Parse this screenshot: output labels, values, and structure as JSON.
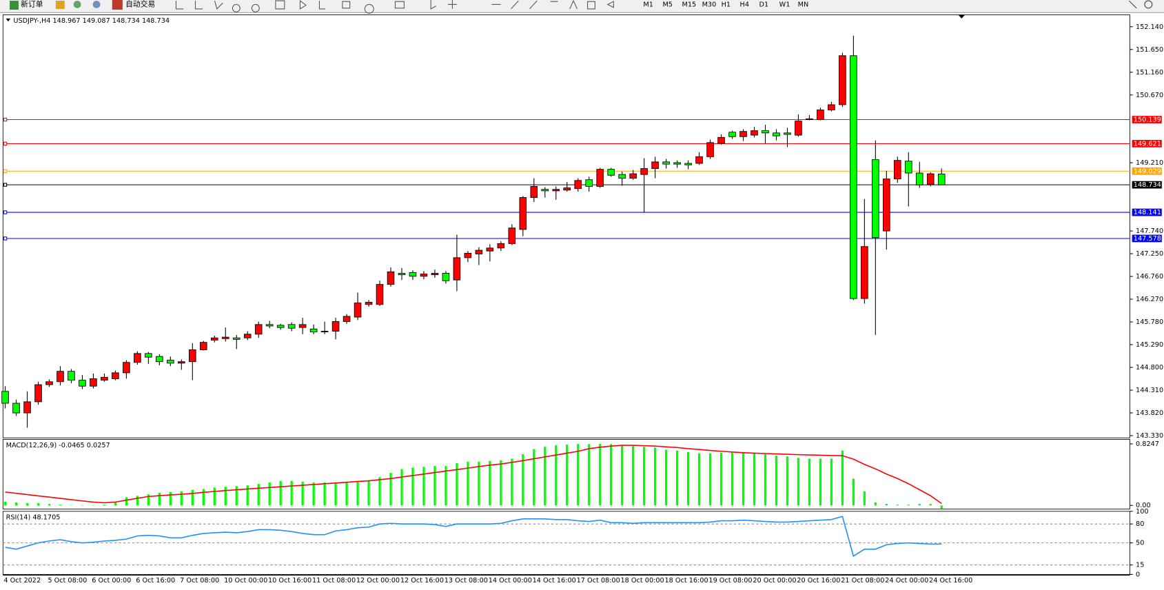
{
  "toolbar": {
    "new_order": "新订单",
    "auto_trading": "自动交易",
    "timeframes": [
      "M1",
      "M5",
      "M15",
      "M30",
      "H1",
      "H4",
      "D1",
      "W1",
      "MN"
    ]
  },
  "chart_data": [
    {
      "type": "candlestick",
      "title": "USDJPY-,H4  148.967 149.087 148.734 148.734",
      "categories": [
        "4 Oct 2022",
        null,
        null,
        null,
        "5 Oct 08:00",
        null,
        null,
        null,
        "6 Oct 00:00",
        null,
        null,
        null,
        "6 Oct 16:00",
        null,
        null,
        null,
        "7 Oct 08:00",
        null,
        null,
        null,
        "10 Oct 00:00",
        null,
        null,
        null,
        "10 Oct 16:00",
        null,
        null,
        null,
        "11 Oct 08:00",
        null,
        null,
        null,
        "12 Oct 00:00",
        null,
        null,
        null,
        "12 Oct 16:00",
        null,
        null,
        null,
        "13 Oct 08:00",
        null,
        null,
        null,
        "14 Oct 00:00",
        null,
        null,
        null,
        "14 Oct 16:00",
        null,
        null,
        null,
        "17 Oct 08:00",
        null,
        null,
        null,
        "18 Oct 00:00",
        null,
        null,
        null,
        "18 Oct 16:00",
        null,
        null,
        null,
        "19 Oct 08:00",
        null,
        null,
        null,
        "20 Oct 00:00",
        null,
        null,
        null,
        "20 Oct 16:00",
        null,
        null,
        null,
        "21 Oct 08:00",
        null,
        null,
        null,
        "24 Oct 00:00",
        null,
        null,
        null,
        "24 Oct 16:00",
        null
      ],
      "open": [
        144.284,
        144.028,
        143.82,
        144.06,
        144.428,
        144.492,
        144.716,
        144.524,
        144.396,
        144.524,
        144.556,
        144.684,
        144.908,
        145.1,
        145.036,
        144.956,
        144.892,
        144.924,
        145.18,
        145.388,
        145.42,
        145.436,
        145.436,
        145.516,
        145.724,
        145.708,
        145.724,
        145.66,
        145.628,
        145.564,
        145.58,
        145.788,
        145.884,
        146.156,
        146.156,
        146.588,
        146.828,
        146.844,
        146.764,
        146.796,
        146.828,
        146.684,
        147.164,
        147.244,
        147.308,
        147.372,
        147.468,
        147.772,
        148.46,
        148.636,
        148.604,
        148.62,
        148.652,
        148.844,
        148.7,
        149.068,
        148.956,
        148.876,
        148.956,
        149.084,
        149.228,
        149.212,
        149.196,
        149.196,
        149.34,
        149.628,
        149.868,
        149.772,
        149.804,
        149.9,
        149.852,
        149.852,
        149.804,
        150.14,
        150.14,
        150.348,
        150.46,
        151.516,
        146.284,
        149.276,
        147.74,
        148.86,
        149.244,
        148.988,
        148.748,
        148.967
      ],
      "high": [
        144.396,
        144.108,
        144.284,
        144.492,
        144.54,
        144.828,
        144.764,
        144.636,
        144.668,
        144.668,
        144.732,
        144.956,
        145.148,
        145.132,
        145.084,
        145.036,
        144.972,
        145.324,
        145.372,
        145.484,
        145.66,
        145.5,
        145.58,
        145.788,
        145.804,
        145.74,
        145.772,
        145.868,
        145.724,
        145.788,
        145.868,
        145.948,
        146.412,
        146.252,
        146.668,
        146.956,
        146.94,
        146.892,
        146.876,
        146.908,
        146.876,
        147.66,
        147.308,
        147.388,
        147.452,
        147.516,
        147.884,
        148.492,
        148.876,
        148.684,
        148.7,
        148.796,
        148.876,
        148.908,
        149.1,
        149.1,
        149.02,
        149.052,
        149.308,
        149.34,
        149.292,
        149.26,
        149.26,
        149.436,
        149.708,
        149.82,
        149.9,
        149.932,
        149.98,
        150.028,
        149.932,
        149.964,
        150.252,
        150.236,
        150.396,
        150.524,
        151.58,
        151.948,
        148.428,
        149.692,
        149.036,
        149.34,
        149.436,
        149.228,
        149.004,
        149.087
      ],
      "low": [
        143.916,
        143.756,
        143.5,
        143.996,
        144.38,
        144.412,
        144.46,
        144.332,
        144.348,
        144.492,
        144.524,
        144.556,
        144.86,
        144.876,
        144.844,
        144.828,
        144.748,
        144.524,
        145.164,
        145.34,
        145.356,
        145.196,
        145.388,
        145.436,
        145.644,
        145.612,
        145.58,
        145.516,
        145.516,
        145.516,
        145.404,
        145.74,
        145.82,
        146.108,
        146.124,
        146.54,
        146.684,
        146.684,
        146.7,
        146.732,
        146.604,
        146.444,
        147.068,
        147.004,
        147.084,
        147.308,
        147.436,
        147.628,
        148.364,
        148.46,
        148.412,
        148.588,
        148.588,
        148.588,
        148.668,
        148.908,
        148.716,
        148.844,
        148.14,
        148.876,
        149.084,
        149.1,
        149.068,
        149.164,
        149.292,
        149.596,
        149.724,
        149.676,
        149.756,
        149.628,
        149.692,
        149.548,
        149.772,
        150.124,
        150.124,
        150.316,
        150.412,
        146.252,
        146.172,
        145.5,
        147.34,
        148.78,
        148.268,
        148.668,
        148.7,
        148.734
      ],
      "close": [
        144.028,
        143.82,
        144.06,
        144.428,
        144.492,
        144.716,
        144.524,
        144.396,
        144.556,
        144.588,
        144.684,
        144.908,
        145.1,
        145.02,
        144.924,
        144.892,
        144.924,
        145.18,
        145.34,
        145.436,
        145.452,
        145.404,
        145.516,
        145.724,
        145.692,
        145.66,
        145.644,
        145.724,
        145.564,
        145.58,
        145.788,
        145.9,
        146.188,
        146.204,
        146.588,
        146.86,
        146.796,
        146.764,
        146.812,
        146.828,
        146.668,
        147.164,
        147.26,
        147.324,
        147.372,
        147.468,
        147.804,
        148.46,
        148.7,
        148.604,
        148.636,
        148.668,
        148.828,
        148.7,
        149.068,
        148.94,
        148.876,
        148.972,
        149.084,
        149.228,
        149.18,
        149.18,
        149.164,
        149.34,
        149.644,
        149.756,
        149.772,
        149.884,
        149.9,
        149.852,
        149.788,
        149.82,
        150.108,
        150.156,
        150.348,
        150.46,
        151.516,
        146.284,
        147.404,
        147.596,
        148.86,
        149.26,
        148.988,
        148.732,
        148.972,
        148.734
      ],
      "up_color": "#ff0000",
      "down_color": "#00ff00",
      "ylim": [
        143.282,
        152.396
      ],
      "yticks": [
        {
          "value": 152.14,
          "label": "152.140"
        },
        {
          "value": 151.65,
          "label": "151.650"
        },
        {
          "value": 151.16,
          "label": "151.160"
        },
        {
          "value": 150.67,
          "label": "150.670"
        },
        {
          "value": 149.21,
          "label": "149.210"
        },
        {
          "value": 147.74,
          "label": "147.740"
        },
        {
          "value": 147.25,
          "label": "147.250"
        },
        {
          "value": 146.76,
          "label": "146.760"
        },
        {
          "value": 146.27,
          "label": "146.270"
        },
        {
          "value": 145.78,
          "label": "145.780"
        },
        {
          "value": 145.29,
          "label": "145.290"
        },
        {
          "value": 144.8,
          "label": "144.800"
        },
        {
          "value": 144.31,
          "label": "144.310"
        },
        {
          "value": 143.82,
          "label": "143.820"
        },
        {
          "value": 143.33,
          "label": "143.330"
        }
      ],
      "levels": [
        {
          "value": 150.139,
          "label": "150.139",
          "color": "#ff0000"
        },
        {
          "value": 149.621,
          "label": "149.621",
          "color": "#ff0000"
        },
        {
          "value": 149.029,
          "label": "149.029",
          "color": "#ffa500"
        },
        {
          "value": 148.734,
          "label": "148.734",
          "color": "#000000"
        },
        {
          "value": 148.141,
          "label": "148.141",
          "color": "#0000ff"
        },
        {
          "value": 147.578,
          "label": "147.578",
          "color": "#0000ff"
        }
      ]
    },
    {
      "type": "macd",
      "title": "MACD(12,26,9) -0.0465 0.0257",
      "ylim": [
        -0.0497,
        0.885
      ],
      "yticks": [
        {
          "value": 0.8247,
          "label": "0.8247"
        },
        {
          "value": 0,
          "label": "0.00"
        }
      ],
      "histogram": {
        "color": "#00ff00",
        "values": [
          0.05,
          0.04,
          0.03,
          0.03,
          0.02,
          0.01,
          0.005,
          0.003,
          0.004,
          0.01,
          0.05,
          0.109,
          0.129,
          0.149,
          0.169,
          0.179,
          0.189,
          0.209,
          0.219,
          0.239,
          0.249,
          0.258,
          0.268,
          0.288,
          0.308,
          0.328,
          0.328,
          0.318,
          0.308,
          0.308,
          0.308,
          0.318,
          0.328,
          0.338,
          0.378,
          0.437,
          0.487,
          0.507,
          0.517,
          0.527,
          0.527,
          0.567,
          0.586,
          0.586,
          0.596,
          0.606,
          0.626,
          0.686,
          0.755,
          0.785,
          0.805,
          0.815,
          0.822,
          0.822,
          0.8247,
          0.822,
          0.805,
          0.795,
          0.785,
          0.775,
          0.745,
          0.735,
          0.716,
          0.696,
          0.696,
          0.706,
          0.706,
          0.716,
          0.696,
          0.686,
          0.666,
          0.656,
          0.636,
          0.626,
          0.626,
          0.626,
          0.735,
          0.358,
          0.189,
          0.04,
          0.02,
          0.01,
          0.01,
          0.02,
          0.02,
          -0.0465
        ]
      },
      "signal": {
        "color": "#ff0000",
        "values": [
          0.179,
          0.162,
          0.145,
          0.128,
          0.111,
          0.094,
          0.077,
          0.06,
          0.045,
          0.035,
          0.045,
          0.07,
          0.095,
          0.119,
          0.13,
          0.14,
          0.15,
          0.16,
          0.175,
          0.187,
          0.199,
          0.21,
          0.22,
          0.23,
          0.24,
          0.25,
          0.26,
          0.27,
          0.28,
          0.29,
          0.3,
          0.31,
          0.32,
          0.33,
          0.345,
          0.36,
          0.38,
          0.4,
          0.42,
          0.44,
          0.46,
          0.48,
          0.5,
          0.52,
          0.54,
          0.555,
          0.577,
          0.6,
          0.625,
          0.65,
          0.675,
          0.7,
          0.725,
          0.76,
          0.78,
          0.795,
          0.805,
          0.805,
          0.8,
          0.795,
          0.785,
          0.775,
          0.76,
          0.75,
          0.736,
          0.725,
          0.715,
          0.706,
          0.7,
          0.695,
          0.69,
          0.685,
          0.68,
          0.676,
          0.672,
          0.668,
          0.666,
          0.62,
          0.55,
          0.49,
          0.42,
          0.36,
          0.29,
          0.21,
          0.13,
          0.0257
        ]
      }
    },
    {
      "type": "line",
      "title": "RSI(14) 48.1705",
      "color": "#1e90ff",
      "grid": true,
      "ylim": [
        0,
        100
      ],
      "yticks": [
        100,
        80,
        50,
        15,
        0
      ],
      "values": [
        43,
        40,
        45,
        50,
        53,
        55,
        52,
        50,
        51,
        53,
        54,
        56,
        61,
        62,
        61,
        58,
        58,
        62,
        65,
        66,
        67,
        66,
        68,
        71,
        71,
        70,
        68,
        65,
        63,
        63,
        69,
        71,
        74,
        75,
        80,
        81,
        80,
        80,
        80,
        79,
        76,
        80,
        80,
        80,
        80,
        81,
        85,
        88,
        88,
        88,
        87,
        87,
        85,
        84,
        86,
        82,
        82,
        81,
        82,
        82,
        82,
        82,
        82,
        82,
        83,
        85,
        85,
        86,
        85,
        84,
        83,
        83,
        84,
        85,
        86,
        87,
        92,
        29,
        40,
        40,
        47,
        49,
        50,
        49,
        48,
        48.1705
      ]
    }
  ]
}
